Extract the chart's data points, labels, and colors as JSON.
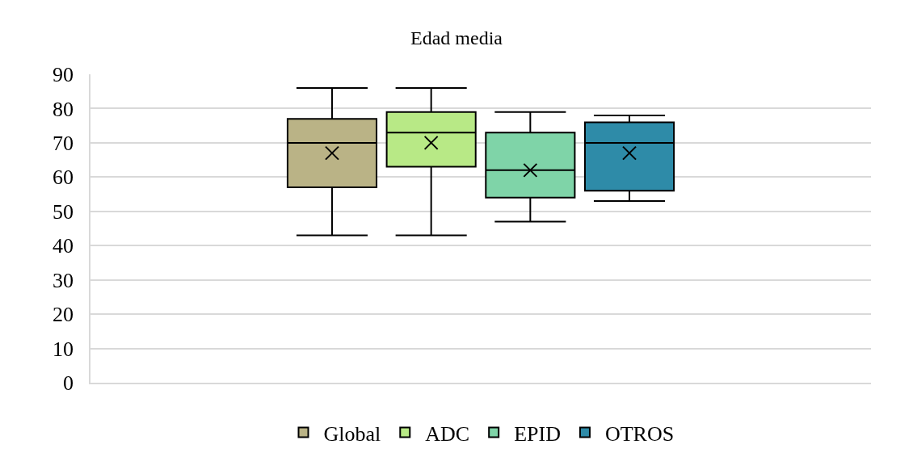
{
  "chart_data": {
    "type": "box",
    "title": "Edad media",
    "categories": [
      null
    ],
    "series": [
      {
        "name": "Global",
        "color": "#bab386",
        "boxes": [
          {
            "low": 43,
            "q1": 57,
            "median": 70,
            "q3": 77,
            "high": 86,
            "mean": 67
          }
        ]
      },
      {
        "name": "ADC",
        "color": "#b8e986",
        "boxes": [
          {
            "low": 43,
            "q1": 63,
            "median": 73,
            "q3": 79,
            "high": 86,
            "mean": 70
          }
        ]
      },
      {
        "name": "EPID",
        "color": "#7fd4a8",
        "boxes": [
          {
            "low": 47,
            "q1": 54,
            "median": 62,
            "q3": 73,
            "high": 79,
            "mean": 62
          }
        ]
      },
      {
        "name": "OTROS",
        "color": "#2e8ba8",
        "boxes": [
          {
            "low": 53,
            "q1": 56,
            "median": 70,
            "q3": 76,
            "high": 78,
            "mean": 67
          }
        ]
      }
    ],
    "ylim": [
      0,
      90
    ],
    "yticks": [
      0,
      10,
      20,
      30,
      40,
      50,
      60,
      70,
      80,
      90
    ],
    "grid": "y",
    "legend": "bottom",
    "tick_labels": "y",
    "marker": "cross"
  }
}
